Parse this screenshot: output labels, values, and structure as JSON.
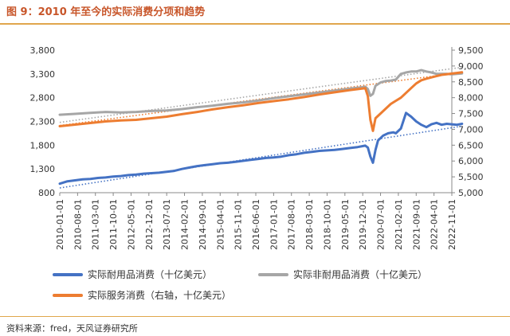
{
  "title": "图 9：2010 年至今的实际消费分项和趋势",
  "source": "资料来源：fred，天风证券研究所",
  "chart_data": {
    "type": "line",
    "x_ticks": [
      "2010-01-01",
      "2010-08-01",
      "2011-03-01",
      "2011-10-01",
      "2012-05-01",
      "2012-12-01",
      "2013-07-01",
      "2014-02-01",
      "2014-09-01",
      "2015-04-01",
      "2015-11-01",
      "2016-06-01",
      "2017-01-01",
      "2017-08-01",
      "2018-03-01",
      "2018-10-01",
      "2019-05-01",
      "2019-12-01",
      "2020-07-01",
      "2021-02-01",
      "2021-09-01",
      "2022-04-01",
      "2022-11-01"
    ],
    "left_axis": {
      "ticks": [
        "800",
        "1,300",
        "1,800",
        "2,300",
        "2,800",
        "3,300",
        "3,800"
      ],
      "ylim": [
        800,
        3800
      ]
    },
    "right_axis": {
      "ticks": [
        "5,000",
        "5,500",
        "6,000",
        "6,500",
        "7,000",
        "7,500",
        "8,000",
        "8,500",
        "9,000",
        "9,500"
      ],
      "ylim": [
        5000,
        9500
      ]
    },
    "series": [
      {
        "name": "实际耐用品消费（十亿美元）",
        "axis": "left",
        "color": "#4472c4",
        "points": [
          [
            0,
            990
          ],
          [
            3,
            1040
          ],
          [
            6,
            1060
          ],
          [
            9,
            1080
          ],
          [
            12,
            1090
          ],
          [
            15,
            1110
          ],
          [
            18,
            1120
          ],
          [
            21,
            1140
          ],
          [
            24,
            1150
          ],
          [
            27,
            1170
          ],
          [
            30,
            1180
          ],
          [
            33,
            1200
          ],
          [
            36,
            1210
          ],
          [
            39,
            1220
          ],
          [
            42,
            1240
          ],
          [
            45,
            1260
          ],
          [
            48,
            1300
          ],
          [
            51,
            1330
          ],
          [
            54,
            1360
          ],
          [
            57,
            1380
          ],
          [
            60,
            1400
          ],
          [
            63,
            1420
          ],
          [
            66,
            1430
          ],
          [
            69,
            1450
          ],
          [
            72,
            1470
          ],
          [
            75,
            1490
          ],
          [
            78,
            1510
          ],
          [
            81,
            1530
          ],
          [
            84,
            1540
          ],
          [
            87,
            1560
          ],
          [
            90,
            1590
          ],
          [
            93,
            1610
          ],
          [
            96,
            1640
          ],
          [
            99,
            1660
          ],
          [
            102,
            1680
          ],
          [
            105,
            1690
          ],
          [
            108,
            1700
          ],
          [
            111,
            1720
          ],
          [
            114,
            1740
          ],
          [
            117,
            1760
          ],
          [
            119,
            1780
          ],
          [
            120,
            1790
          ],
          [
            121,
            1750
          ],
          [
            122,
            1560
          ],
          [
            123,
            1430
          ],
          [
            124,
            1700
          ],
          [
            125,
            1900
          ],
          [
            127,
            2000
          ],
          [
            129,
            2050
          ],
          [
            131,
            2070
          ],
          [
            132,
            2050
          ],
          [
            134,
            2150
          ],
          [
            136,
            2480
          ],
          [
            138,
            2400
          ],
          [
            140,
            2300
          ],
          [
            142,
            2230
          ],
          [
            144,
            2180
          ],
          [
            146,
            2240
          ],
          [
            148,
            2270
          ],
          [
            150,
            2230
          ],
          [
            152,
            2250
          ],
          [
            154,
            2240
          ],
          [
            156,
            2230
          ],
          [
            158,
            2250
          ]
        ],
        "trend": {
          "color": "#4472c4",
          "points": [
            [
              0,
              900
            ],
            [
              158,
              2200
            ]
          ]
        }
      },
      {
        "name": "实际非耐用品消费（十亿美元）",
        "axis": "left",
        "color": "#a6a6a6",
        "points": [
          [
            0,
            2440
          ],
          [
            6,
            2460
          ],
          [
            12,
            2480
          ],
          [
            18,
            2500
          ],
          [
            24,
            2490
          ],
          [
            30,
            2500
          ],
          [
            36,
            2520
          ],
          [
            42,
            2530
          ],
          [
            48,
            2560
          ],
          [
            54,
            2600
          ],
          [
            60,
            2630
          ],
          [
            66,
            2670
          ],
          [
            72,
            2700
          ],
          [
            78,
            2740
          ],
          [
            84,
            2790
          ],
          [
            90,
            2830
          ],
          [
            96,
            2870
          ],
          [
            102,
            2910
          ],
          [
            108,
            2950
          ],
          [
            114,
            2990
          ],
          [
            119,
            3020
          ],
          [
            120,
            3030
          ],
          [
            121,
            2980
          ],
          [
            122,
            2840
          ],
          [
            123,
            2880
          ],
          [
            124,
            3050
          ],
          [
            126,
            3120
          ],
          [
            128,
            3150
          ],
          [
            130,
            3160
          ],
          [
            132,
            3180
          ],
          [
            134,
            3300
          ],
          [
            136,
            3330
          ],
          [
            138,
            3350
          ],
          [
            140,
            3350
          ],
          [
            142,
            3380
          ],
          [
            144,
            3350
          ],
          [
            146,
            3330
          ],
          [
            148,
            3300
          ],
          [
            150,
            3300
          ],
          [
            152,
            3300
          ],
          [
            154,
            3290
          ],
          [
            156,
            3300
          ],
          [
            158,
            3310
          ]
        ],
        "trend": {
          "color": "#a6a6a6",
          "points": [
            [
              0,
              2280
            ],
            [
              158,
              3440
            ]
          ]
        }
      },
      {
        "name": "实际服务消费（右轴，十亿美元）",
        "axis": "right",
        "color": "#ed7d31",
        "points": [
          [
            0,
            7100
          ],
          [
            6,
            7150
          ],
          [
            12,
            7200
          ],
          [
            18,
            7250
          ],
          [
            24,
            7280
          ],
          [
            30,
            7300
          ],
          [
            36,
            7350
          ],
          [
            42,
            7400
          ],
          [
            48,
            7480
          ],
          [
            54,
            7550
          ],
          [
            60,
            7630
          ],
          [
            66,
            7700
          ],
          [
            72,
            7760
          ],
          [
            78,
            7830
          ],
          [
            84,
            7890
          ],
          [
            90,
            7950
          ],
          [
            96,
            8020
          ],
          [
            102,
            8100
          ],
          [
            108,
            8170
          ],
          [
            114,
            8240
          ],
          [
            119,
            8290
          ],
          [
            120,
            8300
          ],
          [
            121,
            8050
          ],
          [
            122,
            7300
          ],
          [
            123,
            6950
          ],
          [
            124,
            7350
          ],
          [
            126,
            7500
          ],
          [
            128,
            7650
          ],
          [
            130,
            7800
          ],
          [
            132,
            7900
          ],
          [
            134,
            8000
          ],
          [
            136,
            8150
          ],
          [
            138,
            8300
          ],
          [
            140,
            8450
          ],
          [
            142,
            8550
          ],
          [
            144,
            8600
          ],
          [
            146,
            8640
          ],
          [
            148,
            8680
          ],
          [
            150,
            8720
          ],
          [
            152,
            8740
          ],
          [
            154,
            8760
          ],
          [
            156,
            8780
          ],
          [
            158,
            8800
          ]
        ],
        "trend": {
          "color": "#ed7d31",
          "points": [
            [
              0,
              7120
            ],
            [
              158,
              8800
            ]
          ]
        }
      }
    ],
    "grid": false,
    "legend_position": "bottom"
  }
}
